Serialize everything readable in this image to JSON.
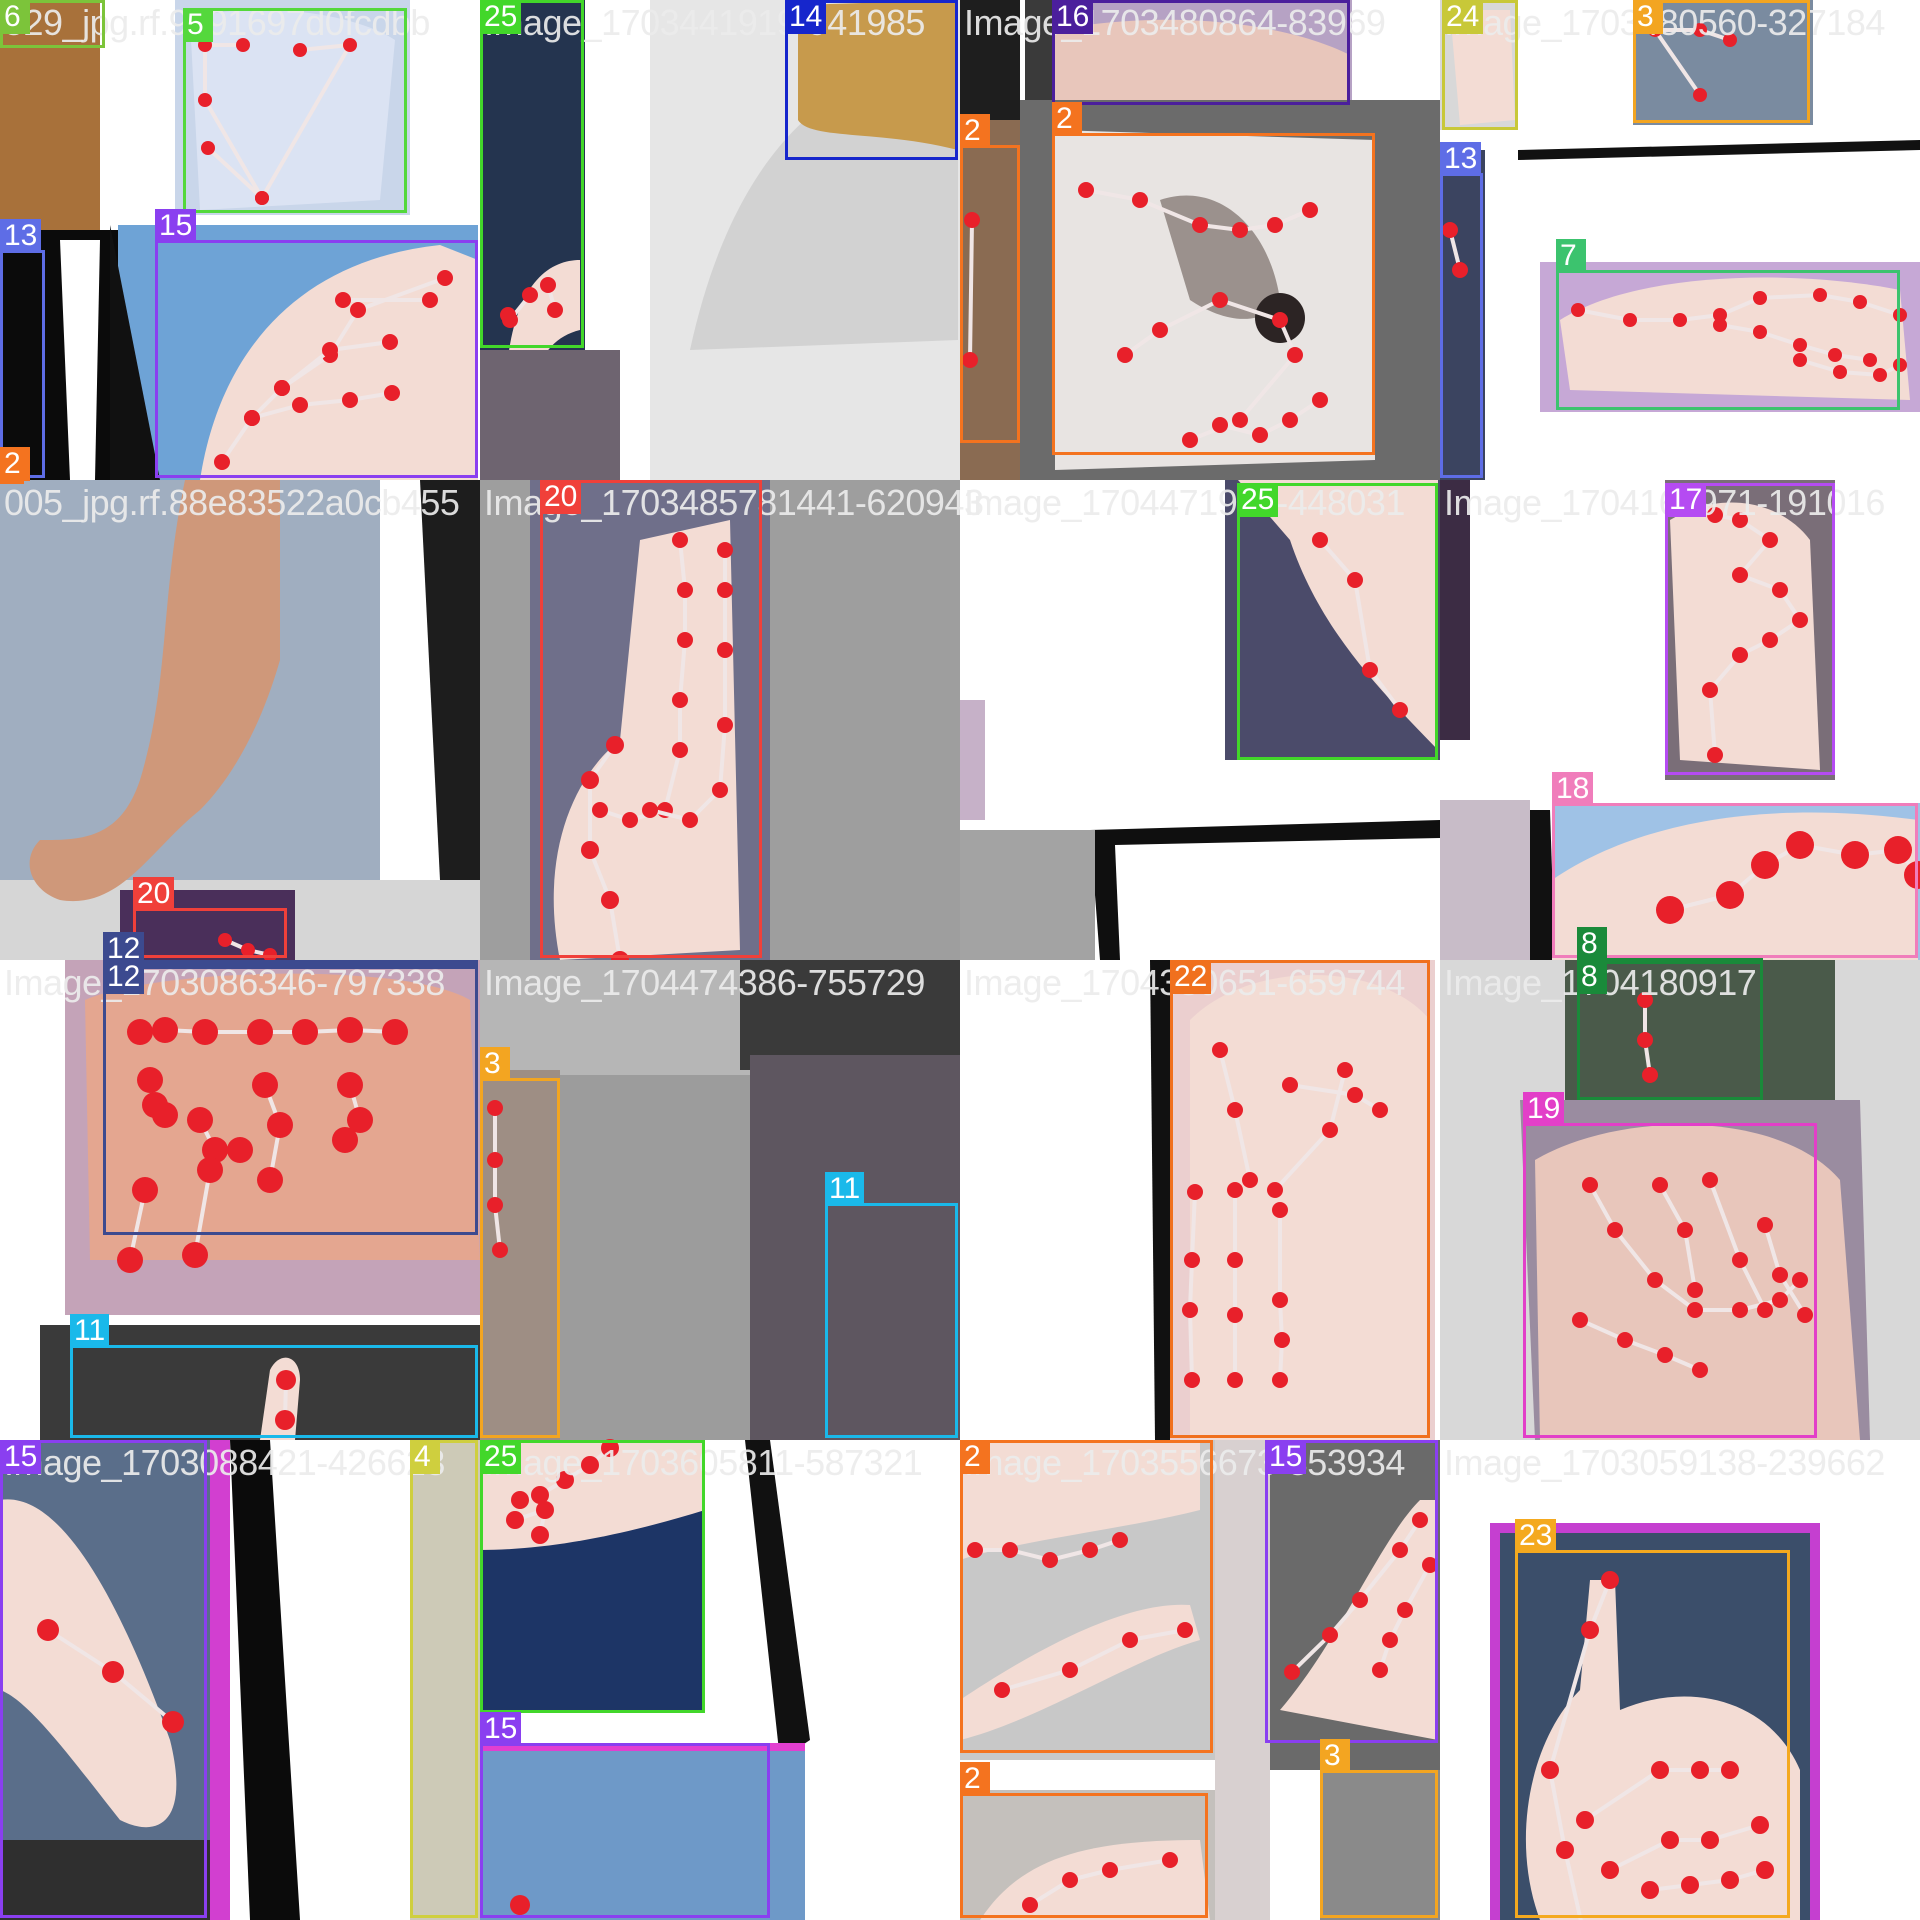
{
  "title": "",
  "colors": {
    "c2": "#f4731f",
    "c3": "#f3a521",
    "c4": "#cfcf3e",
    "c5": "#54d83c",
    "c6": "#7cc43a",
    "c7": "#3cc36e",
    "c8": "#1a8a3a",
    "c11": "#1ab9ea",
    "c12": "#3c4a8f",
    "c13": "#5e6de6",
    "c14": "#1626cc",
    "c15": "#8a3ff0",
    "c16": "#4b1f9c",
    "c17": "#b54bf2",
    "c18": "#f07dbb",
    "c19": "#e23fc8",
    "c20": "#f0403a",
    "c22": "#f0701e",
    "c23": "#f4a91f",
    "c24": "#c8c838",
    "c25": "#42d72a",
    "keypoint": "#e8202a",
    "skeleton": "#f0e6e6"
  },
  "tiles": [
    {
      "filename": "529_jpg.rf.9a91697d0fcdbb",
      "boxes": [
        {
          "cls": "6",
          "color": "#7cc43a",
          "b": [
            0,
            0,
            105,
            48
          ]
        },
        {
          "cls": "5",
          "color": "#54d83c",
          "b": [
            183,
            8,
            407,
            213
          ]
        },
        {
          "cls": "13",
          "color": "#5e6de6",
          "b": [
            0,
            250,
            45,
            478
          ]
        },
        {
          "cls": "15",
          "color": "#8a3ff0",
          "b": [
            155,
            240,
            478,
            478
          ]
        },
        {
          "cls": "2",
          "color": "#f4731f",
          "b": [
            0,
            478,
            24,
            478
          ]
        }
      ]
    },
    {
      "filename": "Image_1703441919-941985",
      "boxes": [
        {
          "cls": "25",
          "color": "#42d72a",
          "b": [
            0,
            0,
            104,
            348
          ]
        },
        {
          "cls": "14",
          "color": "#1626cc",
          "b": [
            305,
            0,
            478,
            160
          ]
        }
      ]
    },
    {
      "filename": "Image_1703480864-83969",
      "boxes": [
        {
          "cls": "16",
          "color": "#4b1f9c",
          "b": [
            92,
            0,
            390,
            105
          ]
        },
        {
          "cls": "2",
          "color": "#f4731f",
          "b": [
            0,
            145,
            60,
            443
          ]
        },
        {
          "cls": "2",
          "color": "#f4731f",
          "b": [
            92,
            133,
            415,
            455
          ]
        }
      ]
    },
    {
      "filename": "Image_1703480560-327184",
      "boxes": [
        {
          "cls": "24",
          "color": "#c8c838",
          "b": [
            2,
            0,
            78,
            130
          ]
        },
        {
          "cls": "3",
          "color": "#f3a521",
          "b": [
            193,
            0,
            370,
            123
          ]
        },
        {
          "cls": "13",
          "color": "#5e6de6",
          "b": [
            0,
            173,
            43,
            478
          ]
        },
        {
          "cls": "7",
          "color": "#3cc36e",
          "b": [
            116,
            270,
            460,
            410
          ]
        }
      ]
    },
    {
      "filename": "005_jpg.rf.88e83522a0cb455",
      "boxes": [
        {
          "cls": "20",
          "color": "#f0403a",
          "b": [
            133,
            428,
            287,
            478
          ]
        },
        {
          "cls": "12",
          "color": "#3c4a8f",
          "b": [
            103,
            483,
            478,
            478
          ]
        }
      ]
    },
    {
      "filename": "Image_1703485781441-620943",
      "boxes": [
        {
          "cls": "20",
          "color": "#f0403a",
          "b": [
            60,
            0,
            282,
            478
          ]
        }
      ]
    },
    {
      "filename": "Image_1704471967-448031",
      "boxes": [
        {
          "cls": "25",
          "color": "#42d72a",
          "b": [
            277,
            3,
            478,
            280
          ]
        }
      ]
    },
    {
      "filename": "Image_1704162971-191016",
      "boxes": [
        {
          "cls": "17",
          "color": "#b54bf2",
          "b": [
            225,
            3,
            395,
            295
          ]
        },
        {
          "cls": "18",
          "color": "#f07dbb",
          "b": [
            112,
            323,
            478,
            478
          ]
        },
        {
          "cls": "8",
          "color": "#1a8a3a",
          "b": [
            137,
            478,
            323,
            478
          ]
        }
      ]
    },
    {
      "filename": "Image_1703086346-797338",
      "boxes": [
        {
          "cls": "12",
          "color": "#3c4a8f",
          "b": [
            103,
            0,
            478,
            275
          ]
        },
        {
          "cls": "11",
          "color": "#1ab9ea",
          "b": [
            70,
            385,
            478,
            478
          ]
        }
      ]
    },
    {
      "filename": "Image_1704474386-755729",
      "boxes": [
        {
          "cls": "3",
          "color": "#f3a521",
          "b": [
            0,
            118,
            80,
            478
          ]
        },
        {
          "cls": "11",
          "color": "#1ab9ea",
          "b": [
            345,
            243,
            478,
            478
          ]
        }
      ]
    },
    {
      "filename": "Image_1704380651-659744",
      "boxes": [
        {
          "cls": "22",
          "color": "#f0701e",
          "b": [
            210,
            0,
            470,
            478
          ]
        }
      ]
    },
    {
      "filename": "Image_1704180917",
      "boxes": [
        {
          "cls": "8",
          "color": "#1a8a3a",
          "b": [
            137,
            0,
            323,
            140
          ]
        },
        {
          "cls": "19",
          "color": "#e23fc8",
          "b": [
            83,
            163,
            377,
            478
          ]
        }
      ]
    },
    {
      "filename": "Image_1703088421-426623",
      "boxes": [
        {
          "cls": "15",
          "color": "#8a3ff0",
          "b": [
            0,
            0,
            207,
            478
          ]
        },
        {
          "cls": "4",
          "color": "#cfcf3e",
          "b": [
            410,
            0,
            478,
            478
          ]
        }
      ]
    },
    {
      "filename": "Image_1703605811-587321",
      "boxes": [
        {
          "cls": "25",
          "color": "#42d72a",
          "b": [
            0,
            0,
            225,
            273
          ]
        },
        {
          "cls": "15",
          "color": "#8a3ff0",
          "b": [
            0,
            303,
            290,
            478
          ]
        }
      ]
    },
    {
      "filename": "Image_1703556673-353934",
      "boxes": [
        {
          "cls": "2",
          "color": "#f4731f",
          "b": [
            0,
            0,
            253,
            313
          ]
        },
        {
          "cls": "15",
          "color": "#8a3ff0",
          "b": [
            305,
            0,
            478,
            303
          ]
        },
        {
          "cls": "2",
          "color": "#f4731f",
          "b": [
            0,
            353,
            248,
            478
          ]
        },
        {
          "cls": "3",
          "color": "#f3a521",
          "b": [
            360,
            330,
            478,
            478
          ]
        }
      ]
    },
    {
      "filename": "Image_1703059138-239662",
      "boxes": [
        {
          "cls": "23",
          "color": "#f4a91f",
          "b": [
            75,
            110,
            350,
            478
          ]
        }
      ]
    }
  ]
}
